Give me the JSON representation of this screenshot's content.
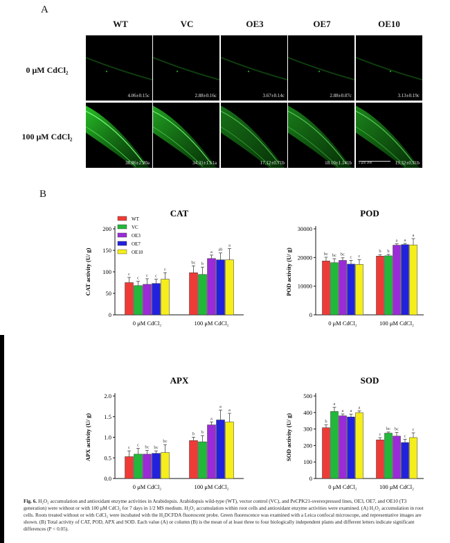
{
  "panel_a": {
    "label": "A",
    "columns": [
      "WT",
      "VC",
      "OE3",
      "OE7",
      "OE10"
    ],
    "rows": [
      "0 μM CdCl₂",
      "100 μM CdCl₂"
    ],
    "values": [
      [
        "4.06±0.15c",
        "2.88±0.16c",
        "3.67±0.14c",
        "2.88±0.07c",
        "3.13±0.19c"
      ],
      [
        "38.86±2.20a",
        "34.31±1.51a",
        "17.12±0.71b",
        "18.10±1.141b",
        "19.32±0.31b"
      ]
    ],
    "scale_bar": "5  μm  200"
  },
  "panel_b": {
    "label": "B"
  },
  "colors": {
    "WT": "#ef3b36",
    "VC": "#22b83a",
    "OE3": "#9a2bd6",
    "OE7": "#2222dd",
    "OE10": "#f5ee1a"
  },
  "chart_data": [
    {
      "type": "bar",
      "title": "CAT",
      "ylabel": "CAT activity (U/ g)",
      "categories": [
        "0 μM CdCl₂",
        "100 μM CdCl₂"
      ],
      "ylim": [
        0,
        200
      ],
      "yticks": [
        0,
        50,
        100,
        150,
        200
      ],
      "legend": "top-left",
      "series": [
        {
          "name": "WT",
          "values": [
            75,
            98
          ],
          "err": [
            12,
            16
          ],
          "letters": [
            "c",
            "bc"
          ]
        },
        {
          "name": "VC",
          "values": [
            68,
            94
          ],
          "err": [
            10,
            17
          ],
          "letters": [
            "c",
            "b"
          ]
        },
        {
          "name": "OE3",
          "values": [
            71,
            131
          ],
          "err": [
            13,
            8
          ],
          "letters": [
            "c",
            "a"
          ]
        },
        {
          "name": "OE7",
          "values": [
            73,
            128
          ],
          "err": [
            10,
            16
          ],
          "letters": [
            "c",
            "ab"
          ]
        },
        {
          "name": "OE10",
          "values": [
            83,
            128
          ],
          "err": [
            15,
            26
          ],
          "letters": [
            "c",
            "a"
          ]
        }
      ]
    },
    {
      "type": "bar",
      "title": "POD",
      "ylabel": "POD activity (U/ g)",
      "categories": [
        "0 μM CdCl₂",
        "100 μM CdCl₂"
      ],
      "ylim": [
        0,
        30000
      ],
      "yticks": [
        0,
        10000,
        20000,
        30000
      ],
      "series": [
        {
          "name": "WT",
          "values": [
            18800,
            20500
          ],
          "err": [
            1300,
            500
          ],
          "letters": [
            "bc",
            "b"
          ]
        },
        {
          "name": "VC",
          "values": [
            18200,
            20600
          ],
          "err": [
            1400,
            500
          ],
          "letters": [
            "bc",
            "b"
          ]
        },
        {
          "name": "OE3",
          "values": [
            19000,
            24300
          ],
          "err": [
            900,
            500
          ],
          "letters": [
            "bc",
            "a"
          ]
        },
        {
          "name": "OE7",
          "values": [
            17700,
            24500
          ],
          "err": [
            1300,
            400
          ],
          "letters": [
            "c",
            "a"
          ]
        },
        {
          "name": "OE10",
          "values": [
            17600,
            24400
          ],
          "err": [
            1700,
            2200
          ],
          "letters": [
            "c",
            "a"
          ]
        }
      ]
    },
    {
      "type": "bar",
      "title": "APX",
      "ylabel": "APX activity (U/ g)",
      "categories": [
        "0 μM CdCl₂",
        "100 μM CdCl₂"
      ],
      "ylim": [
        0,
        2.0
      ],
      "yticks": [
        0,
        0.5,
        1.0,
        1.5,
        2.0
      ],
      "ytick_labels": [
        "0.0",
        "0.5",
        "1.0",
        "1.5",
        "2.0"
      ],
      "series": [
        {
          "name": "WT",
          "values": [
            0.53,
            0.92
          ],
          "err": [
            0.14,
            0.08
          ],
          "letters": [
            "c",
            "b"
          ]
        },
        {
          "name": "VC",
          "values": [
            0.59,
            0.89
          ],
          "err": [
            0.14,
            0.15
          ],
          "letters": [
            "c",
            "b"
          ]
        },
        {
          "name": "OE3",
          "values": [
            0.59,
            1.3
          ],
          "err": [
            0.09,
            0.07
          ],
          "letters": [
            "bc",
            "a"
          ]
        },
        {
          "name": "OE7",
          "values": [
            0.61,
            1.42
          ],
          "err": [
            0.06,
            0.24
          ],
          "letters": [
            "bc",
            "a"
          ]
        },
        {
          "name": "OE10",
          "values": [
            0.63,
            1.37
          ],
          "err": [
            0.19,
            0.21
          ],
          "letters": [
            "bc",
            "a"
          ]
        }
      ]
    },
    {
      "type": "bar",
      "title": "SOD",
      "ylabel": "SOD activity (U/ g)",
      "categories": [
        "0 μM CdCl₂",
        "100 μM CdCl₂"
      ],
      "ylim": [
        0,
        500
      ],
      "yticks": [
        0,
        100,
        200,
        300,
        400,
        500
      ],
      "series": [
        {
          "name": "WT",
          "values": [
            308,
            234
          ],
          "err": [
            17,
            14
          ],
          "letters": [
            "b",
            "c"
          ]
        },
        {
          "name": "VC",
          "values": [
            406,
            275
          ],
          "err": [
            26,
            7
          ],
          "letters": [
            "a",
            "bc"
          ]
        },
        {
          "name": "OE3",
          "values": [
            380,
            257
          ],
          "err": [
            11,
            22
          ],
          "letters": [
            "a",
            "bc"
          ]
        },
        {
          "name": "OE7",
          "values": [
            373,
            218
          ],
          "err": [
            17,
            20
          ],
          "letters": [
            "a",
            "c"
          ]
        },
        {
          "name": "OE10",
          "values": [
            399,
            248
          ],
          "err": [
            11,
            29
          ],
          "letters": [
            "a",
            "c"
          ]
        }
      ]
    }
  ],
  "caption": {
    "fig_label": "Fig. 6.",
    "text": "H₂O₂ accumulation and antioxidant enzyme activities in Arabidopsis. Arabidopsis wild-type (WT), vector control (VC), and PeCPK21-overexpressed lines, OE3, OE7, and OE10 (T3 generation) were without or with 100 μM CdCl₂ for 7 days in 1/2 MS medium. H₂O₂ accumulation within root cells and antioxidant enzyme activities were examined. (A) H₂O₂ accumulation in root cells. Roots treated without or with CdCl₂ were incubated with the H₂DCFDA fluorescent probe. Green fluorescence was examined with a Leica confocal microscope, and representative images are shown. (B) Total activity of CAT, POD, APX and SOD. Each value (A) or column (B) is the mean of at least three to four biologically independent plants and different letters indicate significant differences (P < 0.05)."
  }
}
